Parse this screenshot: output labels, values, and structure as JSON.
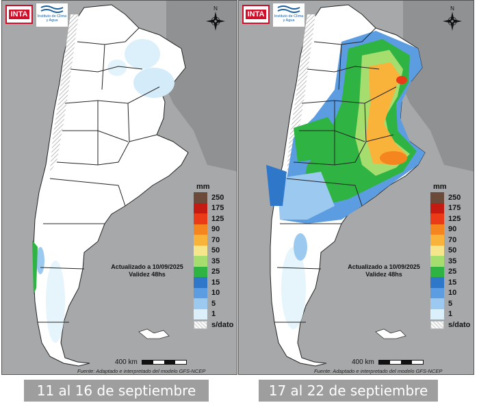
{
  "logos": {
    "inta": "INTA",
    "institute": "Instituto de Clima y Agua"
  },
  "compass_label": "N",
  "legend": {
    "unit": "mm",
    "items": [
      {
        "label": "250",
        "color": "#6b4a3a"
      },
      {
        "label": "175",
        "color": "#c41a12"
      },
      {
        "label": "125",
        "color": "#ea3a18"
      },
      {
        "label": "90",
        "color": "#f5851f"
      },
      {
        "label": "70",
        "color": "#f9b33a"
      },
      {
        "label": "50",
        "color": "#f7e58c"
      },
      {
        "label": "35",
        "color": "#a5dd6f"
      },
      {
        "label": "25",
        "color": "#2fb443"
      },
      {
        "label": "15",
        "color": "#2f77c8"
      },
      {
        "label": "10",
        "color": "#5b9de0"
      },
      {
        "label": "5",
        "color": "#9bc9f0"
      },
      {
        "label": "1",
        "color": "#dcf0fb"
      }
    ],
    "nodata_label": "s/dato"
  },
  "update_line1": "Actualizado a 10/09/2025",
  "update_line2": "Validez 48hs",
  "scale_label": "400 km",
  "source": "Fuente: Adaptado e interpretado del modelo GFS-NCEP",
  "panels": [
    {
      "caption": "11 al 16 de septiembre"
    },
    {
      "caption": "17 al 22 de septiembre"
    }
  ]
}
